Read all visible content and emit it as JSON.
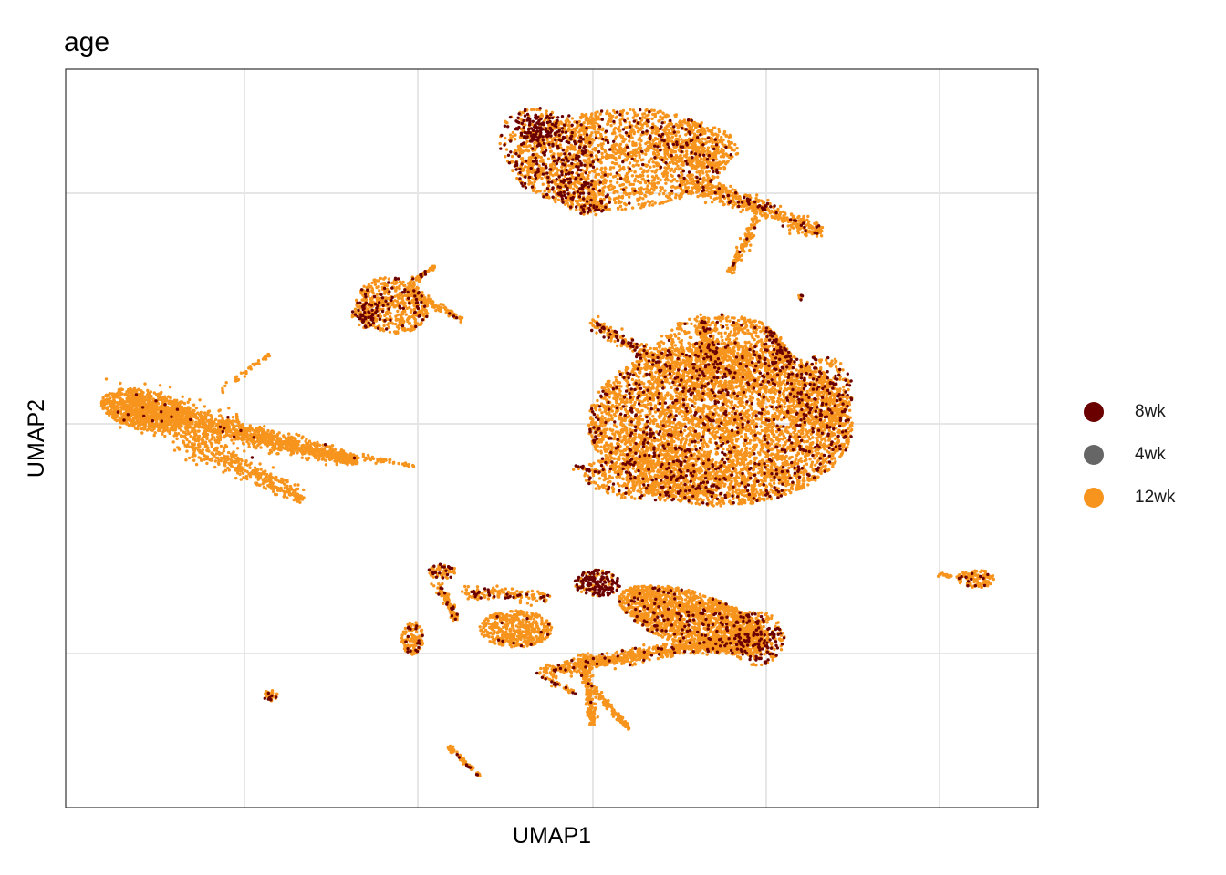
{
  "chart_data": {
    "type": "scatter",
    "title": "age",
    "xlabel": "UMAP1",
    "ylabel": "UMAP2",
    "grid": true,
    "legend_position": "right",
    "axis_ticks_labels": false,
    "series": [
      {
        "name": "8wk",
        "color": "#6b0000"
      },
      {
        "name": "4wk",
        "color": "#666666"
      },
      {
        "name": "12wk",
        "color": "#f7941d"
      }
    ],
    "clusters": [
      {
        "id": "top",
        "center": [
          0.62,
          5.1
        ],
        "dominant": "12wk"
      },
      {
        "id": "mid-left",
        "center": [
          -0.9,
          2.2
        ],
        "dominant": "12wk"
      },
      {
        "id": "left",
        "center": [
          -2.9,
          0.5
        ],
        "dominant": "12wk"
      },
      {
        "id": "right-large",
        "center": [
          1.1,
          0.5
        ],
        "dominant": "12wk"
      },
      {
        "id": "bottom",
        "center": [
          0.6,
          -2.0
        ],
        "dominant": "12wk"
      },
      {
        "id": "small-bottom-left",
        "center": [
          -2.0,
          -2.9
        ],
        "dominant": "12wk"
      },
      {
        "id": "small-bottom",
        "center": [
          -0.9,
          -3.6
        ],
        "dominant": "12wk"
      },
      {
        "id": "small-right",
        "center": [
          3.3,
          -1.65
        ],
        "dominant": "12wk"
      }
    ]
  }
}
